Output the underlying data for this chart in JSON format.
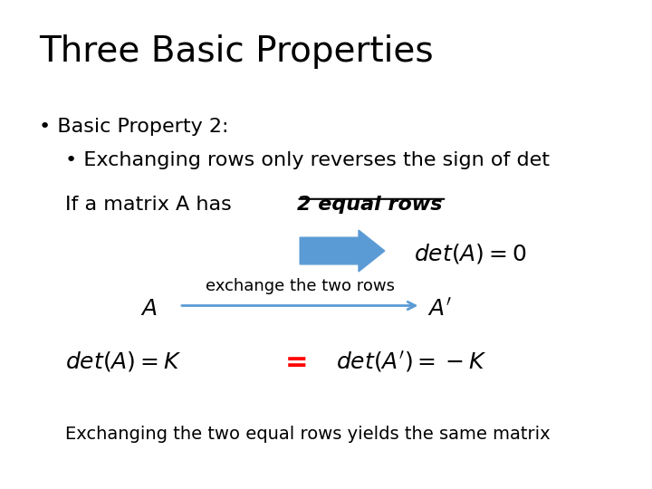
{
  "title": "Three Basic Properties",
  "bullet1": "Basic Property 2:",
  "bullet2": "Exchanging rows only reverses the sign of det",
  "line1_normal": "If a matrix A has ",
  "line1_bold": "2 equal rows",
  "arrow_big_color": "#5B9BD5",
  "arrow_small_color": "#5B9BD5",
  "math1": "$det(A) = 0$",
  "math2_left": "$A$",
  "math2_label": "exchange the two rows",
  "math2_right": "$A'$",
  "math3_left": "$det(A) = K$",
  "math3_eq": "=",
  "math3_right": "$det(A') = -K$",
  "footer": "Exchanging the two equal rows yields the same matrix",
  "bg_color": "#ffffff",
  "text_color": "#000000",
  "title_fontsize": 28,
  "body_fontsize": 16,
  "math_fontsize": 18,
  "eq_color": "#FF0000"
}
